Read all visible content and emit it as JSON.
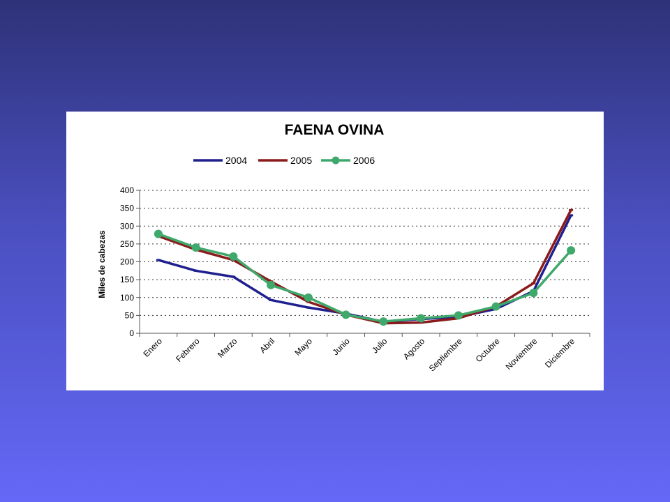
{
  "chart_data": {
    "type": "line",
    "title": "FAENA OVINA",
    "ylabel": "Miles de cabezas",
    "xlabel": "",
    "ylim": [
      0,
      400
    ],
    "yticks": [
      0,
      50,
      100,
      150,
      200,
      250,
      300,
      350,
      400
    ],
    "grid": "horizontal dotted",
    "legend_position": "top",
    "categories": [
      "Enero",
      "Febrero",
      "Marzo",
      "Abril",
      "Mayo",
      "Junio",
      "Julio",
      "Agosto",
      "Septiembre",
      "Octubre",
      "Noviembre",
      "Diciembre"
    ],
    "series": [
      {
        "name": "2004",
        "color": "#1f1f8f",
        "marker": "dash",
        "values": [
          205,
          175,
          158,
          93,
          72,
          55,
          32,
          40,
          46,
          68,
          118,
          330
        ]
      },
      {
        "name": "2005",
        "color": "#8b1a1a",
        "marker": "dash",
        "values": [
          272,
          234,
          205,
          145,
          88,
          52,
          28,
          30,
          42,
          75,
          140,
          345
        ]
      },
      {
        "name": "2006",
        "color": "#3fa86b",
        "marker": "circle",
        "values": [
          278,
          240,
          215,
          135,
          100,
          52,
          33,
          42,
          50,
          75,
          113,
          232
        ]
      }
    ]
  }
}
